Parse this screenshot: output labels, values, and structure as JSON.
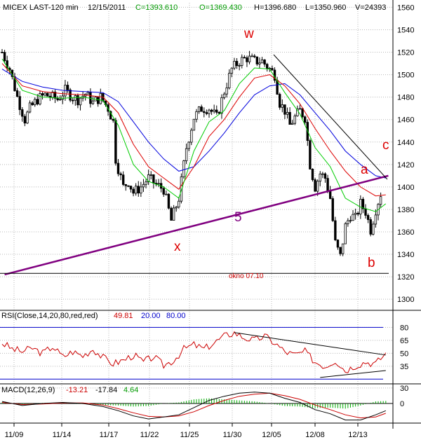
{
  "header": {
    "symbol": "MICEX LAST-120 min",
    "date": "12/15/2011",
    "close": "C=1393.610",
    "open": "O=1369.430",
    "high": "H=1396.680",
    "low": "L=1350.960",
    "volume": "V=24393"
  },
  "rsi_header": {
    "label": "RSI(Close,14,20,80,red,red)",
    "value": "49.81",
    "low_level": "20.00",
    "high_level": "80.00"
  },
  "macd_header": {
    "label": "MACD(12,26,9)",
    "macd": "-13.21",
    "signal": "-17.84",
    "hist": "4.64"
  },
  "annotations": {
    "w": "w",
    "x": "x",
    "five": "5",
    "a": "a",
    "b": "b",
    "c": "c",
    "okno": "okno 07.10"
  },
  "colors": {
    "background": "#ffffff",
    "grid": "#b8b8b8",
    "candles": "#000000",
    "ma_fast": "#00cc00",
    "ma_mid": "#dd0000",
    "ma_slow": "#0000dd",
    "trendline": "#800080",
    "annotation": "#dd0000",
    "rsi_line": "#cc0000",
    "rsi_levels": "#0000cc",
    "macd_line": "#000000",
    "macd_signal": "#cc0000",
    "macd_hist": "#00aa00"
  },
  "chart_data": {
    "type": "candlestick",
    "title": "MICEX LAST-120 min",
    "x_tick_labels": [
      "11/09",
      "11/14",
      "11/17",
      "11/22",
      "11/25",
      "11/30",
      "12/05",
      "12/08",
      "12/13"
    ],
    "price_axis": {
      "ticks": [
        1300,
        1320,
        1340,
        1360,
        1380,
        1400,
        1420,
        1440,
        1460,
        1480,
        1500,
        1520,
        1540,
        1560
      ],
      "ylim": [
        1292,
        1564
      ]
    },
    "price_path": [
      [
        0,
        1520
      ],
      [
        3,
        1505
      ],
      [
        6,
        1480
      ],
      [
        9,
        1460
      ],
      [
        11,
        1470
      ],
      [
        14,
        1478
      ],
      [
        17,
        1482
      ],
      [
        20,
        1480
      ],
      [
        22,
        1478
      ],
      [
        25,
        1486
      ],
      [
        28,
        1480
      ],
      [
        30,
        1478
      ],
      [
        33,
        1483
      ],
      [
        36,
        1475
      ],
      [
        39,
        1480
      ],
      [
        42,
        1470
      ],
      [
        44,
        1458
      ],
      [
        45,
        1425
      ],
      [
        48,
        1400
      ],
      [
        50,
        1405
      ],
      [
        52,
        1395
      ],
      [
        55,
        1400
      ],
      [
        58,
        1408
      ],
      [
        61,
        1402
      ],
      [
        64,
        1398
      ],
      [
        67,
        1370
      ],
      [
        70,
        1390
      ],
      [
        73,
        1435
      ],
      [
        76,
        1462
      ],
      [
        79,
        1470
      ],
      [
        82,
        1470
      ],
      [
        85,
        1462
      ],
      [
        88,
        1485
      ],
      [
        91,
        1505
      ],
      [
        94,
        1512
      ],
      [
        97,
        1515
      ],
      [
        100,
        1512
      ],
      [
        103,
        1512
      ],
      [
        106,
        1505
      ],
      [
        108,
        1500
      ],
      [
        110,
        1475
      ],
      [
        112,
        1468
      ],
      [
        114,
        1455
      ],
      [
        116,
        1462
      ],
      [
        118,
        1468
      ],
      [
        120,
        1462
      ],
      [
        122,
        1420
      ],
      [
        124,
        1400
      ],
      [
        126,
        1412
      ],
      [
        128,
        1408
      ],
      [
        130,
        1390
      ],
      [
        132,
        1350
      ],
      [
        134,
        1338
      ],
      [
        136,
        1365
      ],
      [
        138,
        1375
      ],
      [
        140,
        1372
      ],
      [
        142,
        1385
      ],
      [
        144,
        1378
      ],
      [
        146,
        1362
      ],
      [
        148,
        1380
      ],
      [
        150,
        1394
      ]
    ],
    "trendline_x_to_c": {
      "from": [
        1,
        1322
      ],
      "to": [
        153,
        1410
      ]
    },
    "horizontal_line_okno": {
      "value": 1323,
      "label": "okno 07.10"
    },
    "moving_averages": {
      "fast": [
        [
          0,
          1514
        ],
        [
          8,
          1486
        ],
        [
          16,
          1480
        ],
        [
          24,
          1479
        ],
        [
          32,
          1480
        ],
        [
          40,
          1477
        ],
        [
          46,
          1455
        ],
        [
          52,
          1420
        ],
        [
          58,
          1405
        ],
        [
          64,
          1400
        ],
        [
          70,
          1390
        ],
        [
          76,
          1432
        ],
        [
          82,
          1458
        ],
        [
          88,
          1468
        ],
        [
          94,
          1492
        ],
        [
          100,
          1506
        ],
        [
          106,
          1505
        ],
        [
          112,
          1484
        ],
        [
          118,
          1465
        ],
        [
          124,
          1435
        ],
        [
          130,
          1418
        ],
        [
          136,
          1390
        ],
        [
          142,
          1382
        ],
        [
          148,
          1378
        ],
        [
          152,
          1385
        ]
      ],
      "mid": [
        [
          0,
          1510
        ],
        [
          8,
          1490
        ],
        [
          16,
          1485
        ],
        [
          24,
          1483
        ],
        [
          32,
          1482
        ],
        [
          40,
          1480
        ],
        [
          46,
          1466
        ],
        [
          52,
          1438
        ],
        [
          58,
          1418
        ],
        [
          64,
          1408
        ],
        [
          70,
          1398
        ],
        [
          76,
          1418
        ],
        [
          82,
          1445
        ],
        [
          88,
          1460
        ],
        [
          94,
          1480
        ],
        [
          100,
          1497
        ],
        [
          106,
          1500
        ],
        [
          112,
          1490
        ],
        [
          118,
          1474
        ],
        [
          124,
          1452
        ],
        [
          130,
          1432
        ],
        [
          136,
          1414
        ],
        [
          142,
          1400
        ],
        [
          148,
          1392
        ],
        [
          152,
          1393
        ]
      ],
      "slow": [
        [
          0,
          1505
        ],
        [
          8,
          1494
        ],
        [
          16,
          1489
        ],
        [
          24,
          1486
        ],
        [
          32,
          1485
        ],
        [
          40,
          1484
        ],
        [
          46,
          1476
        ],
        [
          52,
          1458
        ],
        [
          58,
          1440
        ],
        [
          64,
          1425
        ],
        [
          70,
          1414
        ],
        [
          76,
          1418
        ],
        [
          82,
          1432
        ],
        [
          88,
          1448
        ],
        [
          94,
          1466
        ],
        [
          100,
          1482
        ],
        [
          106,
          1490
        ],
        [
          112,
          1492
        ],
        [
          118,
          1482
        ],
        [
          124,
          1466
        ],
        [
          130,
          1450
        ],
        [
          136,
          1432
        ],
        [
          142,
          1420
        ],
        [
          148,
          1410
        ],
        [
          152,
          1408
        ]
      ]
    },
    "rsi": {
      "ticks": [
        35,
        50,
        65,
        80
      ],
      "ylim": [
        17,
        86
      ],
      "levels": [
        20,
        80
      ],
      "values": [
        [
          0,
          62
        ],
        [
          4,
          55
        ],
        [
          8,
          52
        ],
        [
          12,
          56
        ],
        [
          16,
          50
        ],
        [
          20,
          58
        ],
        [
          24,
          46
        ],
        [
          28,
          52
        ],
        [
          32,
          47
        ],
        [
          36,
          55
        ],
        [
          40,
          45
        ],
        [
          44,
          38
        ],
        [
          48,
          42
        ],
        [
          52,
          48
        ],
        [
          56,
          40
        ],
        [
          60,
          46
        ],
        [
          64,
          36
        ],
        [
          68,
          42
        ],
        [
          72,
          55
        ],
        [
          76,
          60
        ],
        [
          80,
          55
        ],
        [
          84,
          62
        ],
        [
          88,
          70
        ],
        [
          92,
          74
        ],
        [
          96,
          68
        ],
        [
          100,
          65
        ],
        [
          104,
          70
        ],
        [
          108,
          62
        ],
        [
          112,
          52
        ],
        [
          116,
          48
        ],
        [
          120,
          52
        ],
        [
          124,
          40
        ],
        [
          128,
          35
        ],
        [
          132,
          42
        ],
        [
          136,
          30
        ],
        [
          140,
          36
        ],
        [
          144,
          40
        ],
        [
          148,
          38
        ],
        [
          152,
          50
        ]
      ],
      "trend_upper": {
        "from": [
          92,
          74
        ],
        "to": [
          152,
          48
        ]
      },
      "trend_lower": {
        "from": [
          126,
          22
        ],
        "to": [
          152,
          30
        ]
      }
    },
    "macd": {
      "ticks": [
        0,
        30
      ],
      "ylim": [
        -38,
        38
      ],
      "macd_line": [
        [
          0,
          4
        ],
        [
          8,
          -4
        ],
        [
          16,
          0
        ],
        [
          24,
          2
        ],
        [
          32,
          0
        ],
        [
          40,
          -6
        ],
        [
          46,
          -14
        ],
        [
          52,
          -24
        ],
        [
          58,
          -30
        ],
        [
          64,
          -26
        ],
        [
          70,
          -22
        ],
        [
          76,
          -8
        ],
        [
          82,
          6
        ],
        [
          88,
          14
        ],
        [
          94,
          20
        ],
        [
          100,
          22
        ],
        [
          106,
          20
        ],
        [
          112,
          10
        ],
        [
          118,
          2
        ],
        [
          124,
          -12
        ],
        [
          130,
          -20
        ],
        [
          136,
          -32
        ],
        [
          142,
          -32
        ],
        [
          148,
          -22
        ],
        [
          152,
          -14
        ]
      ],
      "signal_line": [
        [
          0,
          2
        ],
        [
          8,
          -2
        ],
        [
          16,
          -1
        ],
        [
          24,
          1
        ],
        [
          32,
          1
        ],
        [
          40,
          -3
        ],
        [
          46,
          -10
        ],
        [
          52,
          -18
        ],
        [
          58,
          -25
        ],
        [
          64,
          -26
        ],
        [
          70,
          -24
        ],
        [
          76,
          -16
        ],
        [
          82,
          -4
        ],
        [
          88,
          6
        ],
        [
          94,
          14
        ],
        [
          100,
          18
        ],
        [
          106,
          20
        ],
        [
          112,
          15
        ],
        [
          118,
          8
        ],
        [
          124,
          -3
        ],
        [
          130,
          -12
        ],
        [
          136,
          -22
        ],
        [
          142,
          -28
        ],
        [
          148,
          -26
        ],
        [
          152,
          -19
        ]
      ]
    }
  }
}
